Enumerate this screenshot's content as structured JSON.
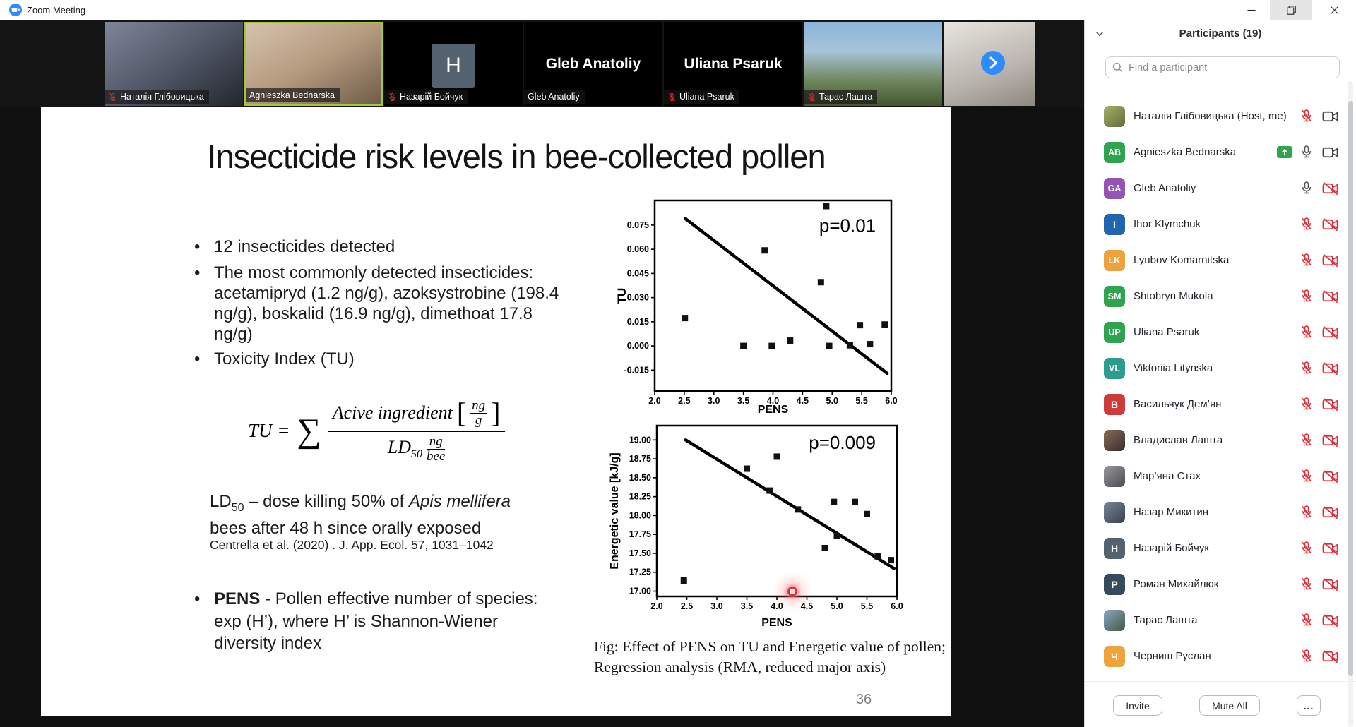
{
  "window": {
    "title": "Zoom Meeting"
  },
  "filmstrip": {
    "tiles": [
      {
        "name": "Наталія Глібовицька",
        "muted": true,
        "style": "video-a",
        "kind": "video"
      },
      {
        "name": "Agnieszka Bednarska",
        "muted": false,
        "style": "video-b",
        "kind": "video",
        "active": true
      },
      {
        "name": "Назарій Бойчук",
        "muted": true,
        "style": "letter",
        "kind": "letter-avatar",
        "letter": "H"
      },
      {
        "name": "Gleb Anatoliy",
        "muted": false,
        "style": "bigname",
        "kind": "name-card"
      },
      {
        "name": "Uliana Psaruk",
        "muted": true,
        "style": "bigname",
        "kind": "name-card"
      },
      {
        "name": "Тарас Лашта",
        "muted": true,
        "style": "video-c",
        "kind": "video"
      },
      {
        "name": "",
        "muted": false,
        "style": "video-d",
        "kind": "video",
        "partial": true
      }
    ]
  },
  "participants": {
    "title": "Participants (19)",
    "search_placeholder": "Find a participant",
    "rows": [
      {
        "name": "Наталія Глібовицька (Host, me)",
        "avatar": {
          "kind": "photo",
          "c1": "#a8b06a",
          "c2": "#5f6b3a"
        },
        "mic": "muted",
        "cam": "on",
        "share": false
      },
      {
        "name": "Agnieszka Bednarska",
        "avatar": {
          "kind": "initials",
          "text": "AB",
          "color": "#2ea44f"
        },
        "mic": "on",
        "cam": "on",
        "share": true
      },
      {
        "name": "Gleb Anatoliy",
        "avatar": {
          "kind": "initials",
          "text": "GA",
          "color": "#9354b4"
        },
        "mic": "on",
        "cam": "off",
        "share": false
      },
      {
        "name": "Ihor Klymchuk",
        "avatar": {
          "kind": "initials",
          "text": "I",
          "color": "#2065b0"
        },
        "mic": "muted",
        "cam": "off",
        "share": false
      },
      {
        "name": "Lyubov Komarnitska",
        "avatar": {
          "kind": "initials",
          "text": "LK",
          "color": "#eda23b"
        },
        "mic": "muted",
        "cam": "off",
        "share": false
      },
      {
        "name": "Shtohryn Mukola",
        "avatar": {
          "kind": "initials",
          "text": "SM",
          "color": "#2ea44f"
        },
        "mic": "muted",
        "cam": "off",
        "share": false
      },
      {
        "name": "Uliana Psaruk",
        "avatar": {
          "kind": "initials",
          "text": "UP",
          "color": "#2ea44f"
        },
        "mic": "muted",
        "cam": "off",
        "share": false
      },
      {
        "name": "Viktoriia Litynska",
        "avatar": {
          "kind": "initials",
          "text": "VL",
          "color": "#2a9d8f"
        },
        "mic": "muted",
        "cam": "off",
        "share": false
      },
      {
        "name": "Васильчук Дем’ян",
        "avatar": {
          "kind": "initials",
          "text": "В",
          "color": "#cf3b3b"
        },
        "mic": "muted",
        "cam": "off",
        "share": false
      },
      {
        "name": "Владислав Лашта",
        "avatar": {
          "kind": "photo",
          "c1": "#8a6a5a",
          "c2": "#3a2e2e"
        },
        "mic": "muted",
        "cam": "off",
        "share": false
      },
      {
        "name": "Мар’яна Стах",
        "avatar": {
          "kind": "photo",
          "c1": "#9a9a9a",
          "c2": "#4a4a52"
        },
        "mic": "muted",
        "cam": "off",
        "share": false
      },
      {
        "name": "Назар Микитин",
        "avatar": {
          "kind": "photo",
          "c1": "#7a8696",
          "c2": "#39404c"
        },
        "mic": "muted",
        "cam": "off",
        "share": false
      },
      {
        "name": "Назарій Бойчук",
        "avatar": {
          "kind": "initials",
          "text": "H",
          "color": "#53626e"
        },
        "mic": "muted",
        "cam": "off",
        "share": false
      },
      {
        "name": "Роман Михайлюк",
        "avatar": {
          "kind": "initials",
          "text": "Р",
          "color": "#36495e"
        },
        "mic": "muted",
        "cam": "off",
        "share": false
      },
      {
        "name": "Тарас Лашта",
        "avatar": {
          "kind": "photo",
          "c1": "#86a8c8",
          "c2": "#46583e"
        },
        "mic": "muted",
        "cam": "off",
        "share": false
      },
      {
        "name": "Черниш Руслан",
        "avatar": {
          "kind": "initials",
          "text": "Ч",
          "color": "#f0a339"
        },
        "mic": "muted",
        "cam": "off",
        "share": false
      }
    ],
    "footer": {
      "invite": "Invite",
      "mute_all": "Mute All",
      "more": "..."
    }
  },
  "slide": {
    "title": "Insecticide risk levels in bee-collected pollen",
    "bullets": [
      "12 insecticides detected",
      "The most commonly detected insecticides: acetamipryd (1.2 ng/g), azoksystrobine (198.4 ng/g), boskalid (16.9 ng/g), dimethoat 17.8 ng/g)",
      "Toxicity Index (TU)"
    ],
    "formula": {
      "lhs": "TU =",
      "sum": "∑",
      "numerator_text": "Acive ingredient",
      "bracket_open": "[",
      "bracket_close": "]",
      "num_unit_top": "ng",
      "num_unit_bottom": "g",
      "den_pre": "LD",
      "den_sub": "50",
      "den_unit_top": "ng",
      "den_unit_bottom": "bee"
    },
    "ld50_note": {
      "pre": "LD",
      "sub": "50",
      "mid": " –  dose killing 50% of ",
      "italic": "Apis mellifera",
      "post": " bees after 48 h since orally exposed"
    },
    "citation": "Centrella et al. (2020) . J. App. Ecol. 57, 1031–1042",
    "pens_bullet": {
      "lead": "PENS",
      "rest": " - Pollen effective number of species: exp (H’), where H’  is Shannon-Wiener diversity index"
    },
    "caption": "Fig: Effect of PENS on TU and Energetic value of pollen; Regression analysis (RMA, reduced major axis)",
    "page_number": "36"
  },
  "chart_data": [
    {
      "type": "scatter",
      "name": "tu-vs-pens-chart",
      "xlabel": "PENS",
      "ylabel": "TU",
      "xlim": [
        2.0,
        6.0
      ],
      "ylim": [
        -0.028,
        0.0903
      ],
      "xticks": [
        "2.0",
        "2.5",
        "3.0",
        "3.5",
        "4.0",
        "4.5",
        "5.0",
        "5.5",
        "6.0"
      ],
      "yticks": [
        "-0.015",
        "0.000",
        "0.015",
        "0.030",
        "0.045",
        "0.060",
        "0.075"
      ],
      "points": [
        [
          2.51,
          0.0173
        ],
        [
          3.5,
          0.0
        ],
        [
          3.86,
          0.0593
        ],
        [
          3.98,
          0.0
        ],
        [
          4.29,
          0.0033
        ],
        [
          4.81,
          0.0396
        ],
        [
          4.9,
          0.0868
        ],
        [
          4.95,
          0.0
        ],
        [
          5.3,
          0.0004
        ],
        [
          5.47,
          0.0129
        ],
        [
          5.64,
          0.0011
        ],
        [
          5.89,
          0.0133
        ]
      ],
      "regression_line": {
        "x": [
          2.52,
          5.93
        ],
        "y": [
          0.079,
          -0.017
        ]
      },
      "annotation": "p=0.01",
      "annotation_pos": [
        5.26,
        0.0707
      ],
      "grid": false,
      "legend": false
    },
    {
      "type": "scatter",
      "name": "energy-vs-pens-chart",
      "xlabel": "PENS",
      "ylabel": "Energetic value [kJ/g]",
      "xlim": [
        2.0,
        6.0
      ],
      "ylim": [
        16.93,
        19.19
      ],
      "xticks": [
        "2.0",
        "2.5",
        "3.0",
        "3.5",
        "4.0",
        "4.5",
        "5.0",
        "5.5",
        "6.0"
      ],
      "yticks": [
        "17.00",
        "17.25",
        "17.50",
        "17.75",
        "18.00",
        "18.25",
        "18.50",
        "18.75",
        "19.00"
      ],
      "points": [
        [
          2.45,
          17.14
        ],
        [
          3.5,
          18.62
        ],
        [
          3.88,
          18.33
        ],
        [
          4.0,
          18.78
        ],
        [
          4.35,
          18.08
        ],
        [
          4.8,
          17.57
        ],
        [
          4.95,
          18.18
        ],
        [
          5.0,
          17.73
        ],
        [
          5.3,
          18.18
        ],
        [
          5.5,
          18.02
        ],
        [
          5.68,
          17.46
        ],
        [
          5.9,
          17.41
        ]
      ],
      "regression_line": {
        "x": [
          2.48,
          5.95
        ],
        "y": [
          19.0,
          17.3
        ]
      },
      "annotation": "p=0.009",
      "annotation_pos": [
        5.09,
        18.88
      ],
      "laser_pointer": [
        4.26,
        17.0
      ],
      "grid": false,
      "legend": false
    }
  ],
  "colors": {
    "accent_blue": "#2e8cff",
    "active_speaker_border": "#a5c73b",
    "muted_red": "#e02b35",
    "icon_dark": "#3f3f3f",
    "share_green": "#2ea44f"
  }
}
